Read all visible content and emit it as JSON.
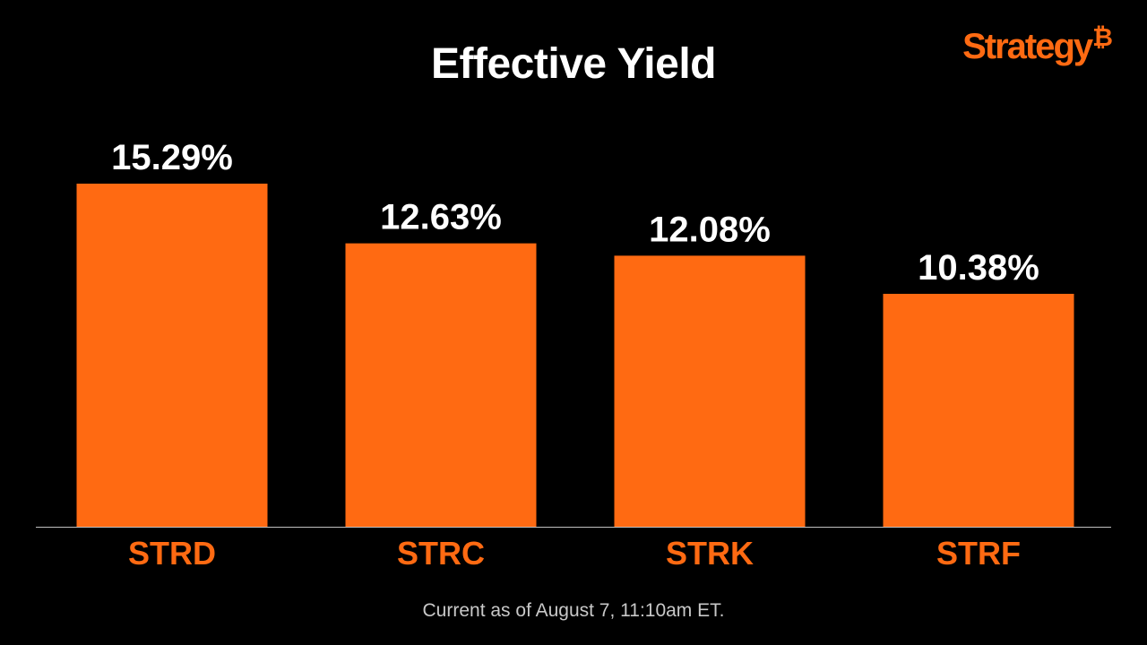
{
  "logo": {
    "text": "Strategy",
    "mark": "₿"
  },
  "footnote": "Current as of August 7, 11:10am ET.",
  "colors": {
    "bar": "#ff6a12",
    "label": "#ff6a12",
    "value_text": "#ffffff",
    "baseline": "#bfbfbf",
    "background": "#000000"
  },
  "chart_data": {
    "type": "bar",
    "title": "Effective Yield",
    "categories": [
      "STRD",
      "STRC",
      "STRK",
      "STRF"
    ],
    "values": [
      15.29,
      12.63,
      12.08,
      10.38
    ],
    "data_labels": [
      "15.29%",
      "12.63%",
      "12.08%",
      "10.38%"
    ],
    "xlabel": "",
    "ylabel": "",
    "ylim": [
      0,
      15.29
    ],
    "grid": false,
    "legend": "none"
  }
}
